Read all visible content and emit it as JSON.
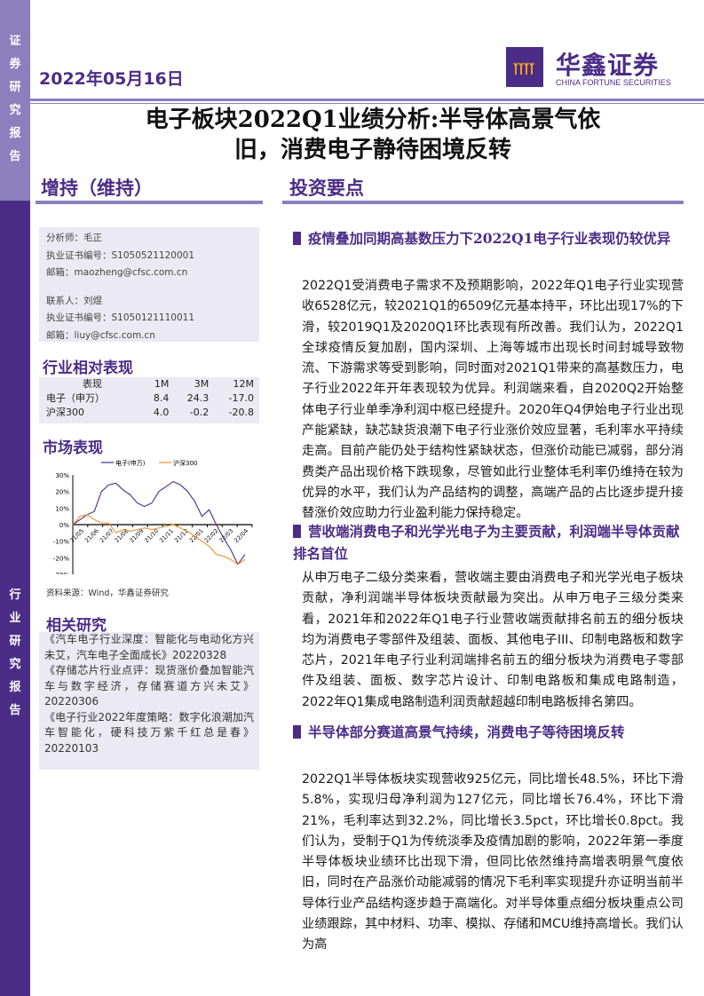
{
  "sidebar": {
    "top_label": "证券研究报告",
    "bottom_label": "行业研究报告"
  },
  "header": {
    "date": "2022年05月16日",
    "logo_cn": "华鑫证券",
    "logo_en": "CHINA FORTUNE SECURITIES",
    "title_line1": "电子板块2022Q1业绩分析:半导体高景气依",
    "title_line2": "旧，消费电子静待困境反转",
    "rating": "增持（维持）",
    "section_title": "投资要点"
  },
  "analyst": {
    "lines": [
      "分析师：毛正",
      "执业证书编号：S1050521120001",
      "邮箱：maozheng@cfsc.com.cn",
      "",
      "联系人：刘煜",
      "执业证书编号：S1050121110011",
      "邮箱：liuy@cfsc.com.cn"
    ]
  },
  "performance": {
    "heading": "行业相对表现",
    "columns": [
      "表现",
      "1M",
      "3M",
      "12M"
    ],
    "rows": [
      [
        "电子（申万）",
        "8.4",
        "24.3",
        "-17.0"
      ],
      [
        "沪深300",
        "4.0",
        "-0.2",
        "-20.8"
      ]
    ]
  },
  "market": {
    "heading": "市场表现",
    "source": "资料来源：Wind，华鑫证券研究"
  },
  "chart_data": {
    "type": "line",
    "legend_placement": "top",
    "ylim": [
      -30,
      30
    ],
    "yticks": [
      "30%",
      "20%",
      "10%",
      "0%",
      "-10%",
      "-20%",
      "-30%"
    ],
    "xticks": [
      "21/05",
      "21/06",
      "21/07",
      "21/08",
      "21/09",
      "21/10",
      "21/11",
      "21/12",
      "22/01",
      "22/02",
      "22/03",
      "22/04"
    ],
    "colors": {
      "电子(申万)": "#4b2d87",
      "沪深300": "#f0902a"
    },
    "x": [
      "21/05",
      "21/05",
      "21/06",
      "21/06",
      "21/07",
      "21/07",
      "21/08",
      "21/08",
      "21/09",
      "21/09",
      "21/10",
      "21/10",
      "21/11",
      "21/11",
      "21/12",
      "21/12",
      "22/01",
      "22/01",
      "22/02",
      "22/02",
      "22/03",
      "22/03",
      "22/04",
      "22/04",
      "22/05"
    ],
    "series": [
      {
        "name": "电子(申万)",
        "values": [
          0,
          3,
          6,
          8,
          20,
          24,
          25,
          21,
          18,
          13,
          11,
          13,
          20,
          23,
          26,
          24,
          20,
          14,
          5,
          9,
          0,
          -8,
          -15,
          -24,
          -18
        ]
      },
      {
        "name": "沪深300",
        "values": [
          0,
          5,
          6,
          3,
          1,
          1,
          -5,
          -3,
          -4,
          -3,
          -2,
          -3,
          -2,
          -1,
          0,
          -2,
          -4,
          -7,
          -10,
          -13,
          -18,
          -19,
          -21,
          -24,
          -21
        ]
      }
    ]
  },
  "related": {
    "heading": "相关研究",
    "items": [
      "《汽车电子行业深度：智能化与电动化方兴未艾，汽车电子全面成长》20220328",
      "《存储芯片行业点评：现货涨价叠加智能汽车与数字经济，存储赛道方兴未艾》20220306",
      "《电子行业2022年度策略：数字化浪潮加汽车智能化，硬科技万紫千红总是春》20220103"
    ]
  },
  "sections": [
    {
      "heading": "疫情叠加同期高基数压力下2022Q1电子行业表现仍较优异",
      "body": "2022Q1受消费电子需求不及预期影响，2022年Q1电子行业实现营收6528亿元，较2021Q1的6509亿元基本持平，环比出现17%的下滑，较2019Q1及2020Q1环比表现有所改善。我们认为，2022Q1全球疫情反复加剧，国内深圳、上海等城市出现长时间封城导致物流、下游需求等受到影响，同时面对2021Q1带来的高基数压力，电子行业2022年开年表现较为优异。利润端来看，自2020Q2开始整体电子行业单季净利润中枢已经提升。2020年Q4伊始电子行业出现产能紧缺，缺芯缺货浪潮下电子行业涨价效应显著，毛利率水平持续走高。目前产能仍处于结构性紧缺状态，但涨价动能已减弱，部分消费类产品出现价格下跌现象，尽管如此行业整体毛利率仍维持在较为优异的水平，我们认为产品结构的调整，高端产品的占比逐步提升接替涨价效应助力行业盈利能力保持稳定。"
    },
    {
      "heading": "营收端消费电子和光学光电子为主要贡献，利润端半导体贡献排名首位",
      "body": "从申万电子二级分类来看，营收端主要由消费电子和光学光电子板块贡献，净利润端半导体板块贡献最为突出。从申万电子三级分类来看，2021年和2022年Q1电子行业营收端贡献排名前五的细分板块均为消费电子零部件及组装、面板、其他电子III、印制电路板和数字芯片，2021年电子行业利润端排名前五的细分板块为消费电子零部件及组装、面板、数字芯片设计、印制电路板和集成电路制造，2022年Q1集成电路制造利润贡献超越印制电路板排名第四。"
    },
    {
      "heading": "半导体部分赛道高景气持续，消费电子等待困境反转",
      "body": "2022Q1半导体板块实现营收925亿元，同比增长48.5%，环比下滑5.8%，实现归母净利润为127亿元，同比增长76.4%，环比下滑21%，毛利率达到32.2%，同比增长3.5pct，环比增长0.8pct。我们认为，受制于Q1为传统淡季及疫情加剧的影响，2022年第一季度半导体板块业绩环比出现下滑，但同比依然维持高增表明景气度依旧，同时在产品涨价动能减弱的情况下毛利率实现提升亦证明当前半导体行业产品结构逐步趋于高端化。对半导体重点细分板块重点公司业绩跟踪，其中材料、功率、模拟、存储和MCU维持高增长。我们认为高"
    }
  ]
}
